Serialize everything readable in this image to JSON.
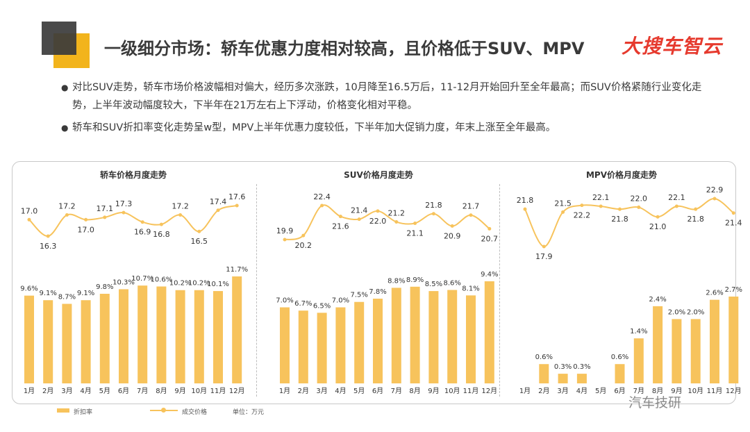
{
  "header": {
    "title": "一级细分市场：轿车优惠力度相对较高，且价格低于SUV、MPV",
    "brand": "大搜车智云"
  },
  "bullets": [
    "对比SUV走势，轿车市场价格波幅相对偏大，经历多次涨跌，10月降至16.5万后，11-12月开始回升至全年最高；而SUV价格紧随行业变化走势，上半年波动幅度较大，下半年在21万左右上下浮动，价格变化相对平稳。",
    "轿车和SUV折扣率变化走势呈w型，MPV上半年优惠力度较低，下半年加大促销力度，年末上涨至全年最高。"
  ],
  "legend": {
    "bar_label": "折扣率",
    "line_label": "成交价格",
    "unit": "单位：万元"
  },
  "watermark": "汽车技研",
  "colors": {
    "bar": "#f7c35c",
    "line": "#f7c35c",
    "accent": "#f2b41c",
    "brand": "#e63a2e",
    "dark_square": "#3b3b3b"
  },
  "chart_data": [
    {
      "type": "bar+line",
      "title": "轿车价格月度走势",
      "categories": [
        "1月",
        "2月",
        "3月",
        "4月",
        "5月",
        "6月",
        "7月",
        "8月",
        "9月",
        "10月",
        "11月",
        "12月"
      ],
      "bar_values": [
        9.6,
        9.1,
        8.7,
        9.1,
        9.8,
        10.3,
        10.7,
        10.6,
        10.2,
        10.2,
        10.1,
        11.7
      ],
      "bar_labels": [
        "9.6%",
        "9.1%",
        "8.7%",
        "9.1%",
        "9.8%",
        "10.3%",
        "10.7%",
        "10.6%",
        "10.2%",
        "10.2%",
        "10.1%",
        "11.7%"
      ],
      "line_values": [
        17.0,
        16.3,
        17.2,
        17.0,
        17.1,
        17.3,
        16.9,
        16.8,
        17.2,
        16.5,
        17.4,
        17.6
      ],
      "line_labels": [
        "17.0",
        "16.3",
        "17.2",
        "17.0",
        "17.1",
        "17.3",
        "16.9",
        "16.8",
        "17.2",
        "16.5",
        "17.4",
        "17.6"
      ],
      "label_below": [
        false,
        true,
        false,
        true,
        false,
        false,
        true,
        true,
        false,
        true,
        false,
        false
      ]
    },
    {
      "type": "bar+line",
      "title": "SUV价格月度走势",
      "categories": [
        "1月",
        "2月",
        "3月",
        "4月",
        "5月",
        "6月",
        "7月",
        "8月",
        "9月",
        "10月",
        "11月",
        "12月"
      ],
      "bar_values": [
        7.0,
        6.7,
        6.5,
        7.0,
        7.5,
        7.8,
        8.8,
        8.9,
        8.5,
        8.6,
        8.1,
        9.4
      ],
      "bar_labels": [
        "7.0%",
        "6.7%",
        "6.5%",
        "7.0%",
        "7.5%",
        "7.8%",
        "8.8%",
        "8.9%",
        "8.5%",
        "8.6%",
        "8.1%",
        "9.4%"
      ],
      "line_values": [
        19.9,
        20.2,
        22.4,
        21.6,
        21.4,
        22.0,
        21.2,
        21.1,
        21.8,
        20.9,
        21.7,
        20.7
      ],
      "line_labels": [
        "19.9",
        "20.2",
        "22.4",
        "21.6",
        "21.4",
        "22.0",
        "21.2",
        "21.1",
        "21.8",
        "20.9",
        "21.7",
        "20.7"
      ],
      "label_below": [
        false,
        true,
        false,
        true,
        false,
        true,
        false,
        true,
        false,
        true,
        false,
        true
      ]
    },
    {
      "type": "bar+line",
      "title": "MPV价格月度走势",
      "categories": [
        "1月",
        "2月",
        "3月",
        "4月",
        "5月",
        "6月",
        "7月",
        "8月",
        "9月",
        "10月",
        "11月",
        "12月"
      ],
      "bar_values": [
        0,
        0.6,
        0.3,
        0.3,
        0,
        0.6,
        1.4,
        2.4,
        2.0,
        2.0,
        2.6,
        2.7
      ],
      "bar_labels": [
        "",
        "0.6%",
        "0.3%",
        "0.3%",
        "",
        "0.6%",
        "1.4%",
        "2.4%",
        "2.0%",
        "2.0%",
        "2.6%",
        "2.7%"
      ],
      "line_values": [
        21.8,
        17.9,
        21.5,
        22.2,
        22.1,
        21.8,
        22.0,
        21.0,
        22.1,
        21.8,
        22.9,
        21.4
      ],
      "line_labels": [
        "21.8",
        "17.9",
        "21.5",
        "22.2",
        "22.1",
        "21.8",
        "22.0",
        "21.0",
        "22.1",
        "21.8",
        "22.9",
        "21.4"
      ],
      "label_below": [
        false,
        true,
        false,
        true,
        false,
        true,
        false,
        true,
        false,
        true,
        false,
        true
      ]
    }
  ]
}
